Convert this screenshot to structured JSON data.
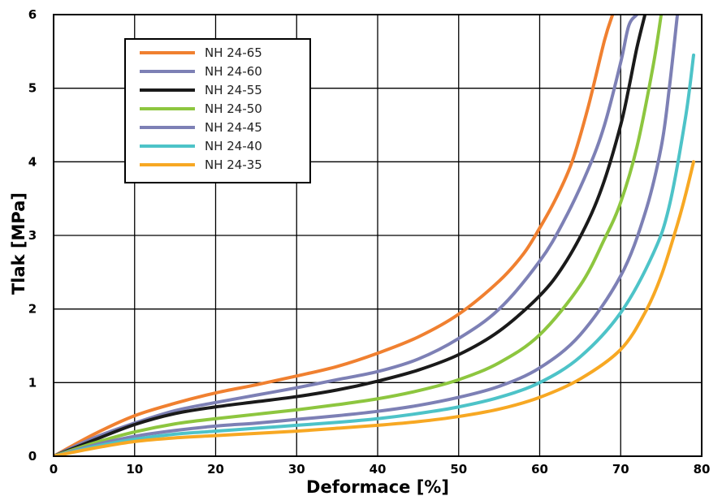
{
  "chart_data": {
    "type": "line",
    "title": "",
    "xlabel": "Deformace [%]",
    "ylabel": "Tlak [MPa]",
    "xlim": [
      0,
      80
    ],
    "ylim": [
      0,
      6
    ],
    "xticks": [
      0,
      10,
      20,
      30,
      40,
      50,
      60,
      70,
      80
    ],
    "yticks": [
      0,
      1,
      2,
      3,
      4,
      5,
      6
    ],
    "grid": true,
    "legend_position": "top-left",
    "series": [
      {
        "name": "NH 24-65",
        "color": "#f08030",
        "x": [
          0,
          5,
          10,
          15,
          20,
          25,
          30,
          35,
          40,
          45,
          50,
          55,
          58,
          60,
          62,
          64,
          66,
          68,
          69
        ],
        "y": [
          0,
          0.3,
          0.55,
          0.72,
          0.86,
          0.97,
          1.09,
          1.22,
          1.4,
          1.62,
          1.93,
          2.38,
          2.75,
          3.1,
          3.5,
          4.0,
          4.75,
          5.65,
          6.0
        ]
      },
      {
        "name": "NH 24-60",
        "color": "#7d80b5",
        "x": [
          0,
          5,
          10,
          15,
          20,
          25,
          30,
          35,
          40,
          45,
          50,
          55,
          60,
          63,
          66,
          68,
          70,
          71,
          72
        ],
        "y": [
          0,
          0.25,
          0.45,
          0.62,
          0.73,
          0.83,
          0.93,
          1.04,
          1.15,
          1.32,
          1.6,
          2.0,
          2.65,
          3.2,
          3.9,
          4.5,
          5.35,
          5.85,
          6.0
        ]
      },
      {
        "name": "NH 24-55",
        "color": "#1a1a1a",
        "x": [
          0,
          5,
          10,
          15,
          20,
          25,
          30,
          35,
          40,
          45,
          50,
          55,
          60,
          63,
          66,
          68,
          70,
          71,
          72,
          73
        ],
        "y": [
          0,
          0.22,
          0.43,
          0.58,
          0.67,
          0.74,
          0.81,
          0.9,
          1.02,
          1.17,
          1.38,
          1.7,
          2.18,
          2.6,
          3.2,
          3.75,
          4.5,
          5.0,
          5.55,
          6.0
        ]
      },
      {
        "name": "NH 24-50",
        "color": "#8dc63f",
        "x": [
          0,
          5,
          10,
          15,
          20,
          25,
          30,
          35,
          40,
          45,
          50,
          55,
          60,
          65,
          68,
          70,
          72,
          74,
          75
        ],
        "y": [
          0,
          0.18,
          0.33,
          0.44,
          0.51,
          0.57,
          0.63,
          0.7,
          0.78,
          0.89,
          1.04,
          1.27,
          1.65,
          2.32,
          2.95,
          3.45,
          4.2,
          5.3,
          6.0
        ]
      },
      {
        "name": "NH 24-45",
        "color": "#7d80b5",
        "x": [
          0,
          5,
          10,
          15,
          20,
          25,
          30,
          35,
          40,
          45,
          50,
          55,
          60,
          65,
          70,
          73,
          75,
          76,
          77
        ],
        "y": [
          0,
          0.15,
          0.27,
          0.35,
          0.41,
          0.45,
          0.5,
          0.55,
          0.61,
          0.69,
          0.8,
          0.95,
          1.2,
          1.65,
          2.45,
          3.3,
          4.2,
          5.0,
          6.0
        ]
      },
      {
        "name": "NH 24-40",
        "color": "#4dc3c8",
        "x": [
          0,
          5,
          10,
          15,
          20,
          25,
          30,
          35,
          40,
          45,
          50,
          55,
          60,
          65,
          70,
          74,
          76,
          78,
          79
        ],
        "y": [
          0,
          0.13,
          0.23,
          0.3,
          0.34,
          0.38,
          0.42,
          0.46,
          0.51,
          0.58,
          0.67,
          0.8,
          1.0,
          1.35,
          1.95,
          2.75,
          3.4,
          4.6,
          5.45
        ]
      },
      {
        "name": "NH 24-35",
        "color": "#f7a823",
        "x": [
          0,
          5,
          10,
          15,
          20,
          25,
          30,
          35,
          40,
          45,
          50,
          55,
          60,
          65,
          70,
          73,
          75,
          77,
          78,
          79
        ],
        "y": [
          0,
          0.11,
          0.2,
          0.25,
          0.28,
          0.31,
          0.34,
          0.38,
          0.42,
          0.47,
          0.54,
          0.64,
          0.8,
          1.05,
          1.45,
          1.95,
          2.45,
          3.15,
          3.55,
          4.0
        ]
      }
    ]
  }
}
